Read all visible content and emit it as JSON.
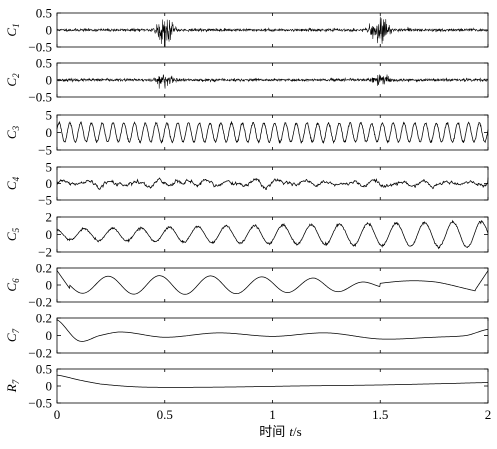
{
  "chart_data": {
    "type": "line",
    "xlabel": {
      "text": "时间",
      "var": "t",
      "unit": "/s"
    },
    "xlim": [
      0,
      2
    ],
    "xticks": [
      "0",
      "0.5",
      "1",
      "1.5",
      "2"
    ],
    "xtick_values": [
      0,
      0.5,
      1,
      1.5,
      2
    ],
    "grid": false,
    "panels": [
      {
        "label": "C",
        "sub": "1",
        "ylim": [
          -0.5,
          0.5
        ],
        "yticks": [
          {
            "v": 0.5,
            "t": "0.5"
          },
          {
            "v": 0,
            "t": "0"
          },
          {
            "v": -0.5,
            "t": "−0.5"
          }
        ]
      },
      {
        "label": "C",
        "sub": "2",
        "ylim": [
          -0.5,
          0.5
        ],
        "yticks": [
          {
            "v": 0.5,
            "t": "0.5"
          },
          {
            "v": 0,
            "t": "0"
          },
          {
            "v": -0.5,
            "t": "−0.5"
          }
        ]
      },
      {
        "label": "C",
        "sub": "3",
        "ylim": [
          -5,
          5
        ],
        "yticks": [
          {
            "v": 5,
            "t": "5"
          },
          {
            "v": 0,
            "t": "0"
          },
          {
            "v": -5,
            "t": "−5"
          }
        ]
      },
      {
        "label": "C",
        "sub": "4",
        "ylim": [
          -5,
          5
        ],
        "yticks": [
          {
            "v": 5,
            "t": "5"
          },
          {
            "v": 0,
            "t": "0"
          },
          {
            "v": -5,
            "t": "−5"
          }
        ]
      },
      {
        "label": "C",
        "sub": "5",
        "ylim": [
          -2,
          2
        ],
        "yticks": [
          {
            "v": 2,
            "t": "2"
          },
          {
            "v": 0,
            "t": "0"
          },
          {
            "v": -2,
            "t": "−2"
          }
        ]
      },
      {
        "label": "C",
        "sub": "6",
        "ylim": [
          -0.2,
          0.2
        ],
        "yticks": [
          {
            "v": 0.2,
            "t": "0.2"
          },
          {
            "v": 0,
            "t": "0"
          },
          {
            "v": -0.2,
            "t": "−0.2"
          }
        ]
      },
      {
        "label": "C",
        "sub": "7",
        "ylim": [
          -0.2,
          0.2
        ],
        "yticks": [
          {
            "v": 0.2,
            "t": "0.2"
          },
          {
            "v": 0,
            "t": "0"
          },
          {
            "v": -0.2,
            "t": "−0.2"
          }
        ]
      },
      {
        "label": "R",
        "sub": "7",
        "ylim": [
          -0.5,
          0.5
        ],
        "yticks": [
          {
            "v": 0.5,
            "t": "0.5"
          },
          {
            "v": 0,
            "t": "0"
          },
          {
            "v": -0.5,
            "t": "−0.5"
          }
        ]
      }
    ],
    "series": [
      {
        "panel": 0,
        "kind": "bursts",
        "noise": 0.02,
        "bursts": [
          {
            "x": 0.5,
            "w": 0.1,
            "a": 0.35
          },
          {
            "x": 1.5,
            "w": 0.1,
            "a": 0.35
          }
        ],
        "seed": 11
      },
      {
        "panel": 1,
        "kind": "bursts",
        "noise": 0.02,
        "bursts": [
          {
            "x": 0.5,
            "w": 0.1,
            "a": 0.2
          },
          {
            "x": 1.5,
            "w": 0.1,
            "a": 0.17
          }
        ],
        "seed": 23
      },
      {
        "panel": 2,
        "kind": "sine",
        "amp": 2.7,
        "freq": 20,
        "phase": 0.3,
        "jitter": 0.15,
        "seed": 31
      },
      {
        "panel": 3,
        "kind": "noisy",
        "amp": 1.4,
        "base": 0.6,
        "seed": 47
      },
      {
        "panel": 4,
        "kind": "modsine",
        "freq": 7.6,
        "amp_start": 0.6,
        "amp_end": 1.5,
        "phase": 1.8,
        "seed": 53
      },
      {
        "panel": 5,
        "kind": "c6",
        "seed": 61
      },
      {
        "panel": 6,
        "kind": "smooth",
        "points": [
          [
            0,
            0.18
          ],
          [
            0.1,
            -0.06
          ],
          [
            0.2,
            0.0
          ],
          [
            0.3,
            0.04
          ],
          [
            0.5,
            -0.02
          ],
          [
            0.75,
            0.03
          ],
          [
            1.0,
            -0.01
          ],
          [
            1.25,
            0.03
          ],
          [
            1.5,
            -0.04
          ],
          [
            1.75,
            -0.02
          ],
          [
            1.9,
            0.0
          ],
          [
            2.0,
            0.07
          ]
        ]
      },
      {
        "panel": 7,
        "kind": "smooth",
        "points": [
          [
            0,
            0.32
          ],
          [
            0.1,
            0.18
          ],
          [
            0.2,
            0.06
          ],
          [
            0.35,
            -0.02
          ],
          [
            0.5,
            -0.04
          ],
          [
            0.8,
            -0.03
          ],
          [
            1.1,
            0.0
          ],
          [
            1.5,
            0.03
          ],
          [
            1.8,
            0.07
          ],
          [
            2.0,
            0.1
          ]
        ]
      }
    ]
  }
}
